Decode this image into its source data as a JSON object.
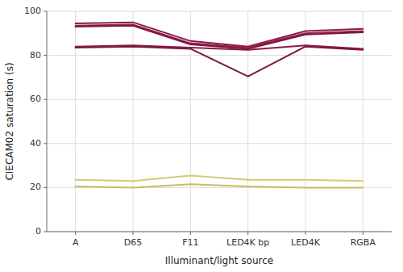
{
  "chart_data": {
    "type": "line",
    "xlabel": "Illuminant/light source",
    "ylabel": "CIECAM02 saturation (s)",
    "categories": [
      "A",
      "D65",
      "F11",
      "LED4K bp",
      "LED4K",
      "RGBA"
    ],
    "series": [
      {
        "color": "#8B1A4A",
        "values": [
          94.5,
          95.0,
          86.5,
          84.0,
          91.0,
          92.0
        ]
      },
      {
        "color": "#9B1F4E",
        "values": [
          93.5,
          94.0,
          85.5,
          83.5,
          90.0,
          91.0
        ]
      },
      {
        "color": "#7A1640",
        "values": [
          93.0,
          93.5,
          85.0,
          83.0,
          89.5,
          90.5
        ]
      },
      {
        "color": "#8B1A4A",
        "values": [
          84.0,
          84.5,
          83.5,
          82.5,
          84.5,
          83.0
        ]
      },
      {
        "color": "#7A1640",
        "values": [
          83.5,
          84.0,
          83.0,
          70.5,
          84.0,
          82.5
        ]
      },
      {
        "color": "#D4C97A",
        "values": [
          23.5,
          23.0,
          25.5,
          23.5,
          23.5,
          23.0
        ]
      },
      {
        "color": "#C8BC60",
        "values": [
          20.5,
          20.0,
          21.5,
          20.5,
          20.0,
          20.0
        ]
      }
    ],
    "ylim": [
      0,
      100
    ],
    "yticks": [
      0,
      20,
      40,
      60,
      80,
      100
    ],
    "grid": true
  }
}
